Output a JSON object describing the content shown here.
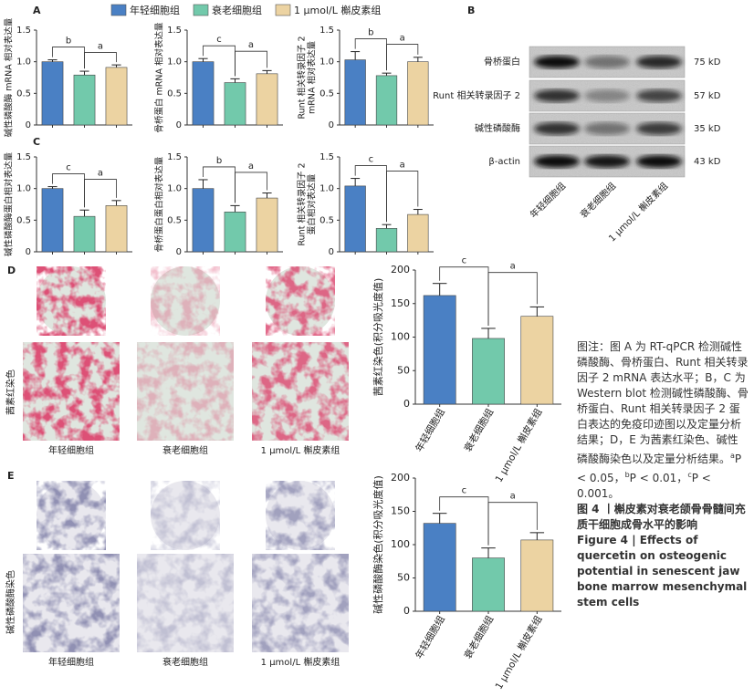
{
  "legend": [
    {
      "name": "年轻细胞组",
      "color": "#4a80c4"
    },
    {
      "name": "衰老细胞组",
      "color": "#72c9ab"
    },
    {
      "name": "1 μmol/L 槲皮素组",
      "color": "#ecd3a2"
    }
  ],
  "panels": [
    "A",
    "B",
    "C",
    "D",
    "E"
  ],
  "chart_data": [
    {
      "type": "bar",
      "ylabel": [
        "碱性磷酸酶 mRNA 相对表达量"
      ],
      "values": [
        1.0,
        0.79,
        0.91
      ],
      "errors": [
        0.03,
        0.06,
        0.04
      ],
      "annotations": [
        "b",
        "a"
      ],
      "ylim": [
        0,
        1.5
      ],
      "yticks": [
        0,
        0.5,
        {
          "value": 1,
          "label": "1.0"
        },
        1.5
      ]
    },
    {
      "type": "bar",
      "ylabel": [
        "骨桥蛋白 mRNA 相对表达量"
      ],
      "values": [
        1.0,
        0.67,
        0.81
      ],
      "errors": [
        0.05,
        0.06,
        0.05
      ],
      "annotations": [
        "c",
        "a"
      ],
      "ylim": [
        0,
        1.5
      ],
      "yticks": [
        0,
        0.5,
        {
          "value": 1,
          "label": "1.0"
        },
        1.5
      ]
    },
    {
      "type": "bar",
      "ylabel": [
        "Runt 相关转录因子 2",
        "mRNA 相对表达量"
      ],
      "values": [
        1.03,
        0.78,
        1.0
      ],
      "errors": [
        0.13,
        0.04,
        0.07
      ],
      "annotations": [
        "b",
        "a"
      ],
      "ylim": [
        0,
        1.5
      ],
      "yticks": [
        0,
        0.5,
        {
          "value": 1,
          "label": "1.0"
        },
        1.5
      ]
    },
    {
      "type": "bar",
      "ylabel": [
        "碱性磷酸酶蛋白相对表达量"
      ],
      "values": [
        1.0,
        0.56,
        0.73
      ],
      "errors": [
        0.03,
        0.1,
        0.08
      ],
      "annotations": [
        "c",
        "a"
      ],
      "ylim": [
        0,
        1.5
      ],
      "yticks": [
        0,
        0.5,
        {
          "value": 1,
          "label": "1.0"
        },
        1.5
      ]
    },
    {
      "type": "bar",
      "ylabel": [
        "骨桥蛋白蛋白相对表达量"
      ],
      "values": [
        1.0,
        0.63,
        0.85
      ],
      "errors": [
        0.14,
        0.1,
        0.08
      ],
      "annotations": [
        "b",
        "a"
      ],
      "ylim": [
        0,
        1.5
      ],
      "yticks": [
        0,
        0.5,
        {
          "value": 1,
          "label": "1.0"
        },
        1.5
      ]
    },
    {
      "type": "bar",
      "ylabel": [
        "Runt 相关转录因子 2",
        "蛋白相对表达量"
      ],
      "values": [
        1.04,
        0.37,
        0.59
      ],
      "errors": [
        0.12,
        0.06,
        0.08
      ],
      "annotations": [
        "c",
        "a"
      ],
      "ylim": [
        0,
        1.5
      ],
      "yticks": [
        0,
        0.5,
        {
          "value": 1,
          "label": "1.0"
        },
        1.5
      ]
    },
    {
      "type": "bar",
      "ylabel": [
        "茜素红染色(积分吸光度值)"
      ],
      "categories": [
        "年轻细胞组",
        "衰老细胞组",
        "1 μmol/L 槲皮素组"
      ],
      "values": [
        162,
        98,
        131
      ],
      "errors": [
        18,
        15,
        14
      ],
      "annotations": [
        "c",
        "a"
      ],
      "ylim": [
        0,
        200
      ],
      "yticks": [
        0,
        50,
        100,
        150,
        200
      ]
    },
    {
      "type": "bar",
      "ylabel": [
        "碱性磷酸酶染色(积分吸光度值)"
      ],
      "categories": [
        "年轻细胞组",
        "衰老细胞组",
        "1 μmol/L 槲皮素组"
      ],
      "values": [
        132,
        80,
        107
      ],
      "errors": [
        15,
        15,
        11
      ],
      "annotations": [
        "c",
        "a"
      ],
      "ylim": [
        0,
        200
      ],
      "yticks": [
        0,
        50,
        100,
        150,
        200
      ]
    }
  ],
  "blot": {
    "rows": [
      {
        "label": "骨桥蛋白",
        "size": "75 kD"
      },
      {
        "label": "Runt 相关转录因子 2",
        "size": "57 kD"
      },
      {
        "label": "碱性磷酸酶",
        "size": "35 kD"
      },
      {
        "label": "β-actin",
        "size": "43 kD"
      }
    ],
    "groups": [
      "年轻细胞组",
      "衰老细胞组",
      "1 μmol/L 槲皮素组"
    ]
  },
  "stains": {
    "d_label": "茜素红染色",
    "e_label": "碱性磷酸酶染色",
    "groups": [
      "年轻细胞组",
      "衰老细胞组",
      "1 μmol/L 槲皮素组"
    ]
  },
  "caption": {
    "note": "图注：图 A 为 RT-qPCR 检测碱性磷酸酶、骨桥蛋白、Runt 相关转录因子 2 mRNA 表达水平；B，C 为 Western blot 检测碱性磷酸酶、骨桥蛋白、Runt 相关转录因子 2 蛋白表达的免疫印迹图以及定量分析结果；D，E 为茜素红染色、碱性磷酸酶染色以及定量分析结果。",
    "stats": [
      {
        "sup": "a",
        "text": "P < 0.05，"
      },
      {
        "sup": "b",
        "text": "P < 0.01，"
      },
      {
        "sup": "c",
        "text": "P < 0.001。"
      }
    ],
    "title_cn": "图 4 丨槲皮素对衰老颌骨骨髓间充质干细胞成骨水平的影响",
    "title_en": "Figure 4 | Effects of quercetin on osteogenic potential in senescent jaw bone marrow mesenchymal stem cells"
  }
}
